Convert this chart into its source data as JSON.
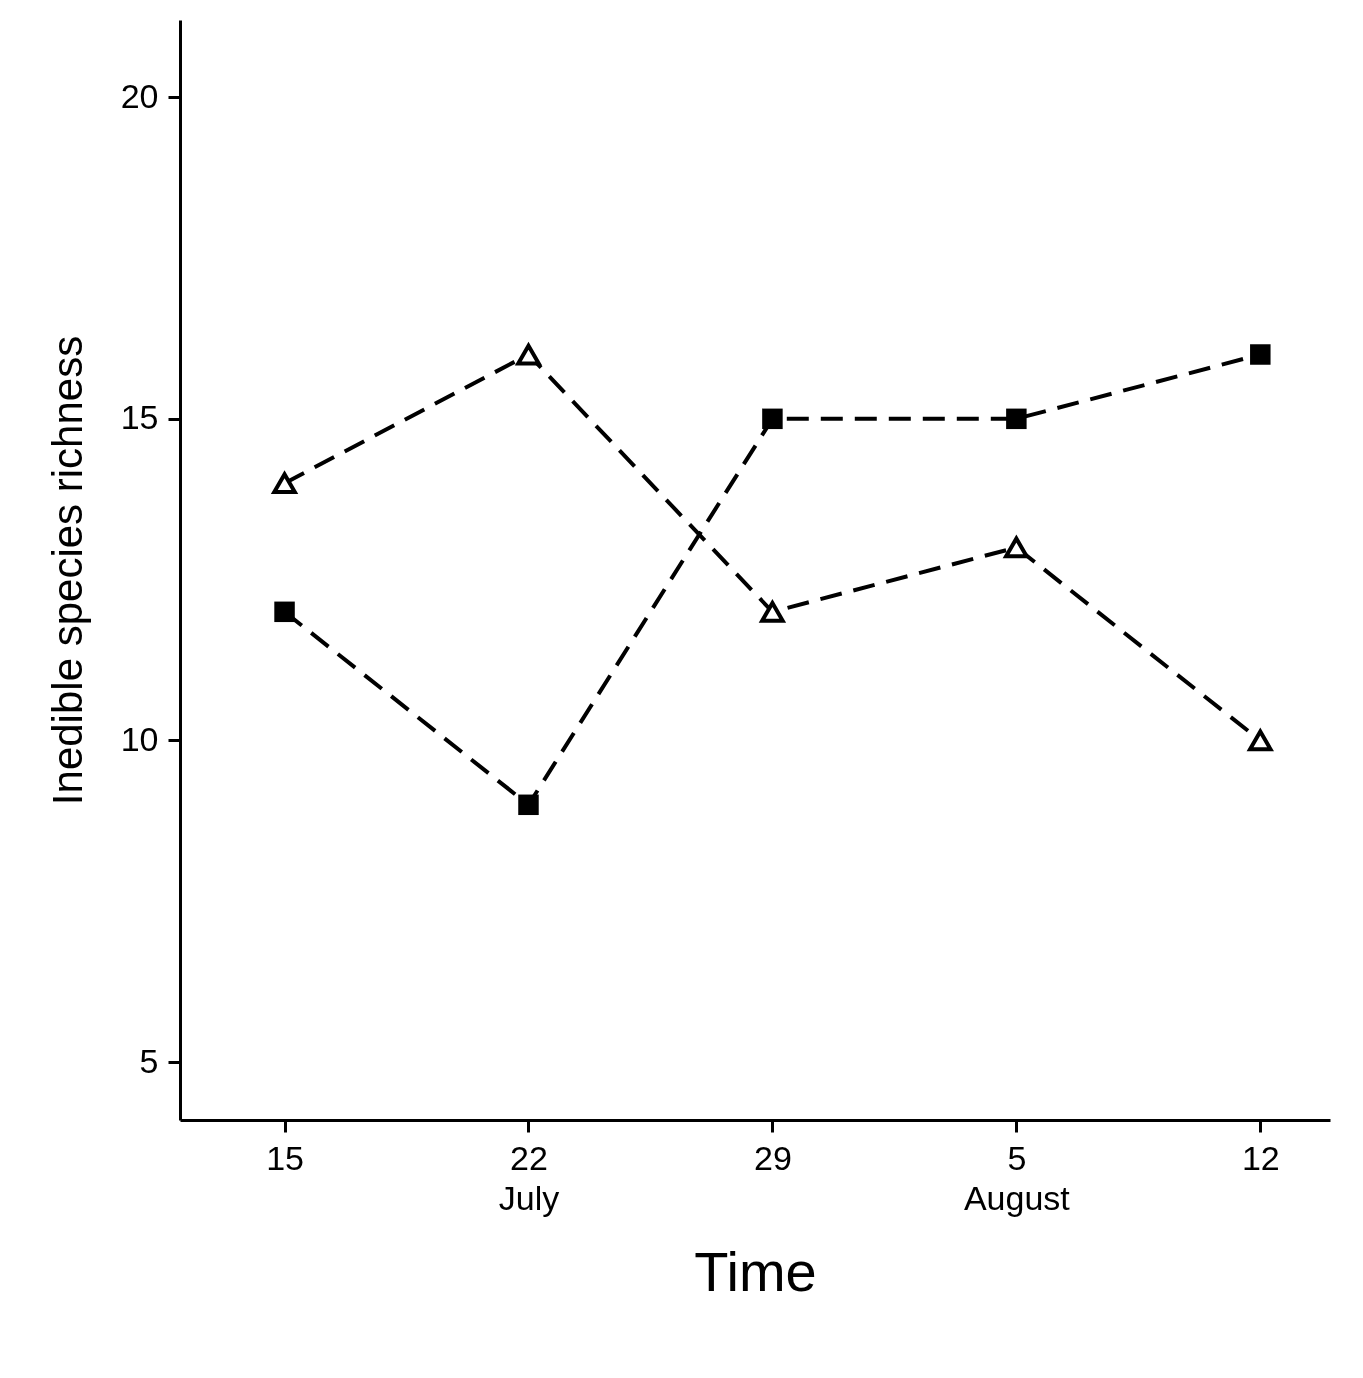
{
  "chart_data": {
    "type": "line",
    "xlabel": "Time",
    "ylabel": "Inedible species richness",
    "x": [
      "--07-15",
      "--07-22",
      "--07-29",
      "--08-05",
      "--08-12"
    ],
    "series": [
      {
        "color": "#000000",
        "marker": "square",
        "values": [
          12,
          9,
          15,
          15,
          16
        ]
      },
      {
        "color": "#000000",
        "marker": "triangle",
        "values": [
          14,
          16,
          12,
          13,
          10
        ]
      }
    ],
    "xlim": [
      "--07-12",
      "--08-14"
    ],
    "xticks": [
      {
        "value": "--07-15",
        "label": "15"
      },
      {
        "value": "--07-22",
        "label": "22\nJuly"
      },
      {
        "value": "--07-29",
        "label": "29"
      },
      {
        "value": "--08-05",
        "label": "5\nAugust"
      },
      {
        "value": "--08-12",
        "label": "12"
      }
    ],
    "ylim": [
      4.1,
      21.2
    ],
    "yticks": [
      5,
      10,
      15,
      20
    ],
    "line_style": "dashed",
    "grid": false
  }
}
